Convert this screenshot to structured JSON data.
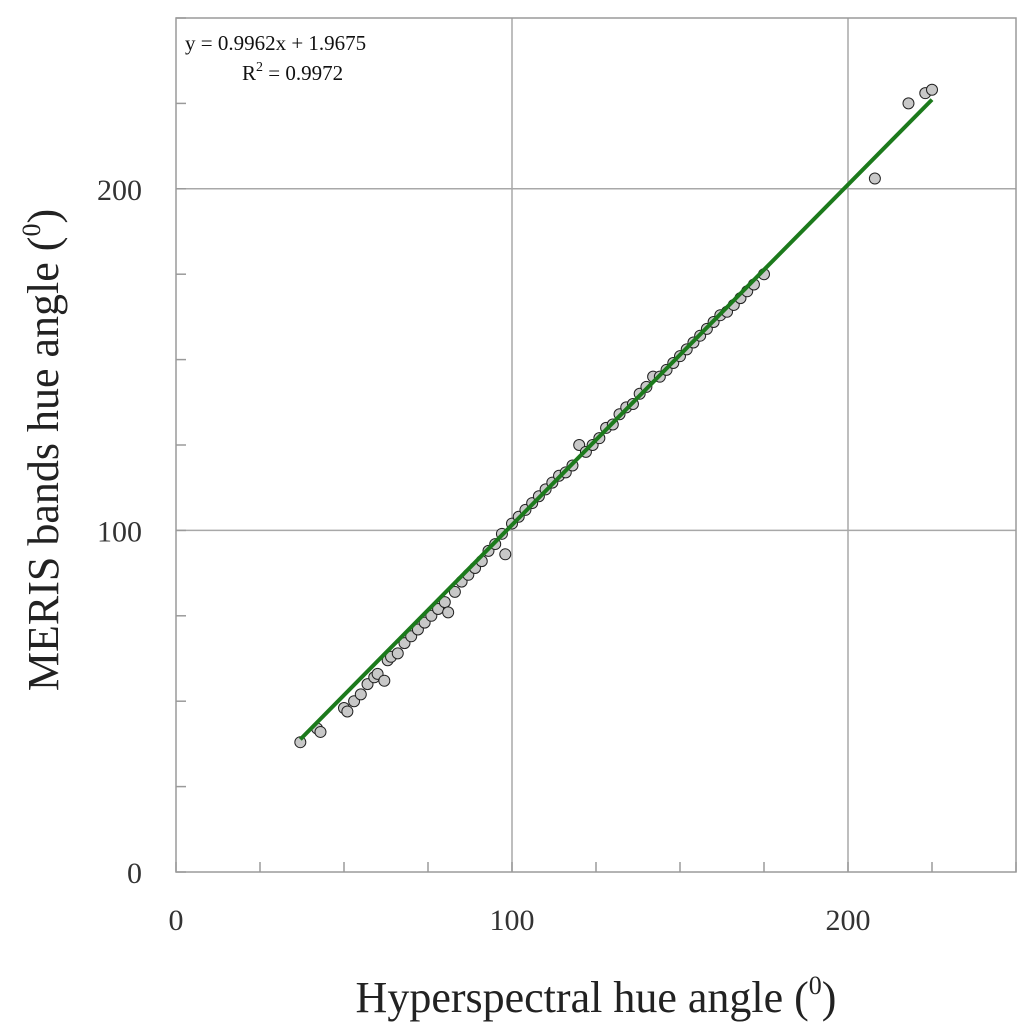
{
  "chart_data": {
    "type": "scatter",
    "xlabel": "Hyperspectral hue angle (",
    "xlabel_sup": "0",
    "xlabel_end": ")",
    "ylabel": "MERIS bands  hue angle (",
    "ylabel_sup": "0",
    "ylabel_end": ")",
    "xlim": [
      0,
      250
    ],
    "ylim": [
      0,
      250
    ],
    "xticks": [
      0,
      100,
      200
    ],
    "yticks": [
      0,
      100,
      200
    ],
    "x_minor_step": 25,
    "y_minor_step": 25,
    "grid": true,
    "annotation": {
      "equation": "y = 0.9962x + 1.9675",
      "r2_prefix": "R",
      "r2_sup": "2",
      "r2_value": " = 0.9972"
    },
    "fit": {
      "slope": 0.9962,
      "intercept": 1.9675,
      "x_range": [
        37,
        225
      ]
    },
    "series": [
      {
        "x": [
          37,
          42,
          43,
          50,
          51,
          53,
          55,
          57,
          59,
          60,
          62,
          63,
          64,
          66,
          68,
          70,
          72,
          74,
          76,
          78,
          80,
          81,
          83,
          85,
          87,
          89,
          91,
          93,
          95,
          97,
          98,
          100,
          102,
          104,
          106,
          108,
          110,
          112,
          114,
          116,
          118,
          120,
          122,
          124,
          126,
          128,
          130,
          132,
          134,
          136,
          138,
          140,
          142,
          144,
          146,
          148,
          150,
          152,
          154,
          156,
          158,
          160,
          162,
          164,
          166,
          168,
          170,
          172,
          175,
          208,
          218,
          223,
          225
        ],
        "y": [
          38,
          42,
          41,
          48,
          47,
          50,
          52,
          55,
          57,
          58,
          56,
          62,
          63,
          64,
          67,
          69,
          71,
          73,
          75,
          77,
          79,
          76,
          82,
          85,
          87,
          89,
          91,
          94,
          96,
          99,
          93,
          102,
          104,
          106,
          108,
          110,
          112,
          114,
          116,
          117,
          119,
          125,
          123,
          125,
          127,
          130,
          131,
          134,
          136,
          137,
          140,
          142,
          145,
          145,
          147,
          149,
          151,
          153,
          155,
          157,
          159,
          161,
          163,
          164,
          166,
          168,
          170,
          172,
          175,
          203,
          225,
          228,
          229
        ]
      }
    ]
  }
}
